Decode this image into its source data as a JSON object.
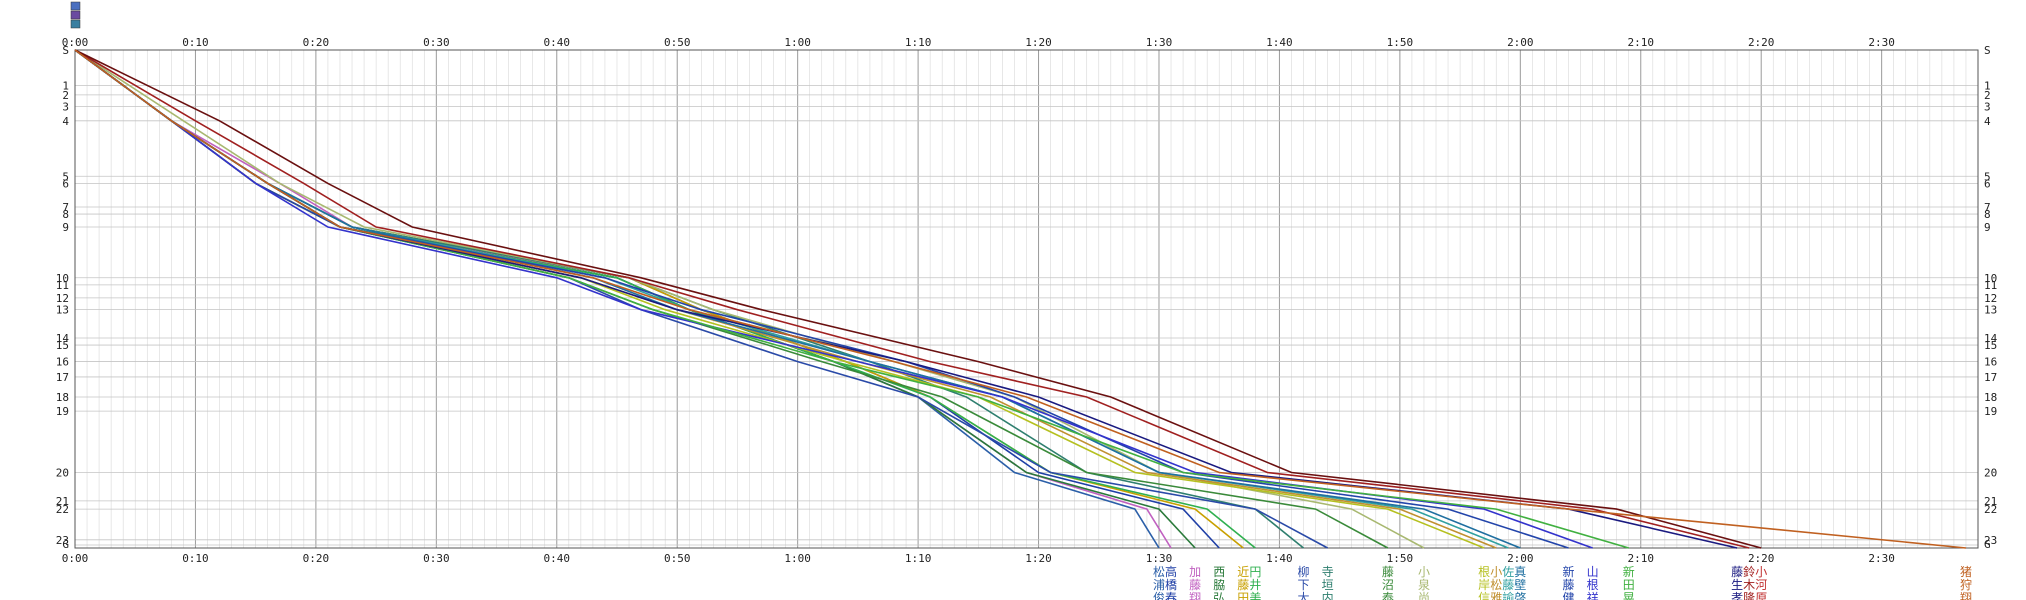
{
  "chart_data": {
    "type": "line",
    "title": "",
    "x_axis": {
      "unit": "h:mm",
      "range_minutes": [
        0,
        158
      ],
      "major_tick_minutes": 10,
      "minor_tick_minutes": 1,
      "tick_labels": [
        "0:00",
        "0:10",
        "0:20",
        "0:30",
        "0:40",
        "0:50",
        "1:00",
        "1:10",
        "1:20",
        "1:30",
        "1:40",
        "1:50",
        "2:00",
        "2:10",
        "2:20",
        "2:30"
      ],
      "tick_positions_minutes": [
        0,
        10,
        20,
        30,
        40,
        50,
        60,
        70,
        80,
        90,
        100,
        110,
        120,
        130,
        140,
        150
      ]
    },
    "y_axis": {
      "inverted": true,
      "range_km": [
        0,
        42.195
      ],
      "start_label": "S",
      "end_label": "G",
      "stations": [
        {
          "label": "1",
          "km": 3.0
        },
        {
          "label": "2",
          "km": 3.8
        },
        {
          "label": "3",
          "km": 4.8
        },
        {
          "label": "4",
          "km": 6.0
        },
        {
          "label": "5",
          "km": 10.7
        },
        {
          "label": "6",
          "km": 11.3
        },
        {
          "label": "7",
          "km": 13.3
        },
        {
          "label": "8",
          "km": 13.9
        },
        {
          "label": "9",
          "km": 15.0
        },
        {
          "label": "10",
          "km": 19.3
        },
        {
          "label": "11",
          "km": 19.9
        },
        {
          "label": "12",
          "km": 21.0
        },
        {
          "label": "13",
          "km": 22.0
        },
        {
          "label": "14",
          "km": 24.4
        },
        {
          "label": "15",
          "km": 25.0
        },
        {
          "label": "16",
          "km": 26.4
        },
        {
          "label": "17",
          "km": 27.7
        },
        {
          "label": "18",
          "km": 29.4
        },
        {
          "label": "19",
          "km": 30.6
        },
        {
          "label": "20",
          "km": 35.8
        },
        {
          "label": "21",
          "km": 38.2
        },
        {
          "label": "22",
          "km": 38.9
        },
        {
          "label": "23",
          "km": 41.5
        }
      ]
    },
    "grid": true,
    "legend": "none",
    "runner_labels": [
      {
        "name": "松浦俊",
        "color": "#2b5fa8"
      },
      {
        "name": "高橋春",
        "color": "#1f3fa6"
      },
      {
        "name": "加藤翔",
        "color": "#c060c0"
      },
      {
        "name": "西脇弘",
        "color": "#2a7a3a"
      },
      {
        "name": "近藤田",
        "color": "#c8a000"
      },
      {
        "name": "円井美",
        "color": "#30b050"
      },
      {
        "name": "柳下大",
        "color": "#2a4aa8"
      },
      {
        "name": "寺垣内",
        "color": "#2f7f6f"
      },
      {
        "name": "藤沼泰",
        "color": "#3a8a3a"
      },
      {
        "name": "小泉尚",
        "color": "#a8b870"
      },
      {
        "name": "根岸信",
        "color": "#b5c020"
      },
      {
        "name": "小松雅",
        "color": "#c09030"
      },
      {
        "name": "佐藤諭",
        "color": "#30a0a0"
      },
      {
        "name": "真壁啓",
        "color": "#1f6fa0"
      },
      {
        "name": "新藤健",
        "color": "#2244aa"
      },
      {
        "name": "山根祥",
        "color": "#3333cc"
      },
      {
        "name": "新田晃",
        "color": "#40b040"
      },
      {
        "name": "藤生孝",
        "color": "#1a1a80"
      },
      {
        "name": "鈴木隆",
        "color": "#a02020"
      },
      {
        "name": "小河原",
        "color": "#c03030"
      },
      {
        "name": "猪狩翔",
        "color": "#c06020"
      }
    ],
    "series": [
      {
        "color": "#2b5fa8",
        "times": [
          0,
          8,
          16,
          22,
          45,
          51,
          63,
          70,
          78,
          88,
          90
        ]
      },
      {
        "color": "#c060c0",
        "times": [
          0,
          8,
          17,
          23,
          45,
          51,
          63,
          70,
          79,
          89,
          91
        ]
      },
      {
        "color": "#2a7a3a",
        "times": [
          0,
          8,
          16,
          22,
          45,
          51,
          63,
          70,
          79,
          90,
          93
        ]
      },
      {
        "color": "#1f3fa6",
        "times": [
          0,
          8,
          16,
          23,
          46,
          52,
          64,
          71,
          80,
          92,
          95
        ]
      },
      {
        "color": "#c8a000",
        "times": [
          0,
          8,
          16,
          23,
          46,
          52,
          64,
          71,
          81,
          93,
          97
        ]
      },
      {
        "color": "#30b050",
        "times": [
          0,
          8,
          16,
          22,
          45,
          51,
          63,
          71,
          81,
          94,
          98
        ]
      },
      {
        "color": "#2f7f6f",
        "times": [
          0,
          8,
          16,
          23,
          46,
          53,
          66,
          74,
          84,
          98,
          102
        ]
      },
      {
        "color": "#2a4aa8",
        "times": [
          0,
          8,
          15,
          22,
          41,
          47,
          60,
          70,
          81,
          98,
          104
        ]
      },
      {
        "color": "#3a8a3a",
        "times": [
          0,
          8,
          15,
          22,
          41,
          48,
          62,
          72,
          84,
          103,
          109
        ]
      },
      {
        "color": "#a8b870",
        "times": [
          0,
          9,
          17,
          24,
          46,
          53,
          68,
          78,
          90,
          106,
          112
        ]
      },
      {
        "color": "#b5c020",
        "times": [
          0,
          8,
          15,
          22,
          42,
          49,
          64,
          75,
          88,
          109,
          117
        ]
      },
      {
        "color": "#c09030",
        "times": [
          0,
          8,
          15,
          22,
          42,
          50,
          65,
          76,
          89,
          110,
          118
        ]
      },
      {
        "color": "#30a0a0",
        "times": [
          0,
          8,
          16,
          23,
          44,
          51,
          66,
          77,
          90,
          111,
          119
        ]
      },
      {
        "color": "#1f6fa0",
        "times": [
          0,
          8,
          16,
          23,
          43,
          50,
          66,
          77,
          90,
          112,
          120
        ]
      },
      {
        "color": "#2244aa",
        "times": [
          0,
          8,
          15,
          22,
          44,
          52,
          69,
          78,
          92,
          114,
          124
        ]
      },
      {
        "color": "#3333cc",
        "times": [
          0,
          8,
          15,
          21,
          40,
          47,
          65,
          77,
          93,
          117,
          126
        ]
      },
      {
        "color": "#40b040",
        "times": [
          0,
          8,
          16,
          22,
          41,
          48,
          63,
          75,
          92,
          118,
          129
        ]
      },
      {
        "color": "#1a1a80",
        "times": [
          0,
          8,
          16,
          22,
          42,
          50,
          69,
          80,
          96,
          124,
          138
        ]
      },
      {
        "color": "#a02020",
        "times": [
          0,
          10,
          19,
          25,
          46,
          55,
          71,
          84,
          99,
          126,
          139
        ]
      },
      {
        "color": "#6a1010",
        "times": [
          0,
          12,
          21,
          28,
          47,
          57,
          75,
          86,
          101,
          128,
          140
        ]
      },
      {
        "color": "#c06020",
        "times": [
          0,
          8,
          16,
          22,
          43,
          51,
          68,
          79,
          95,
          124,
          157
        ]
      }
    ]
  }
}
